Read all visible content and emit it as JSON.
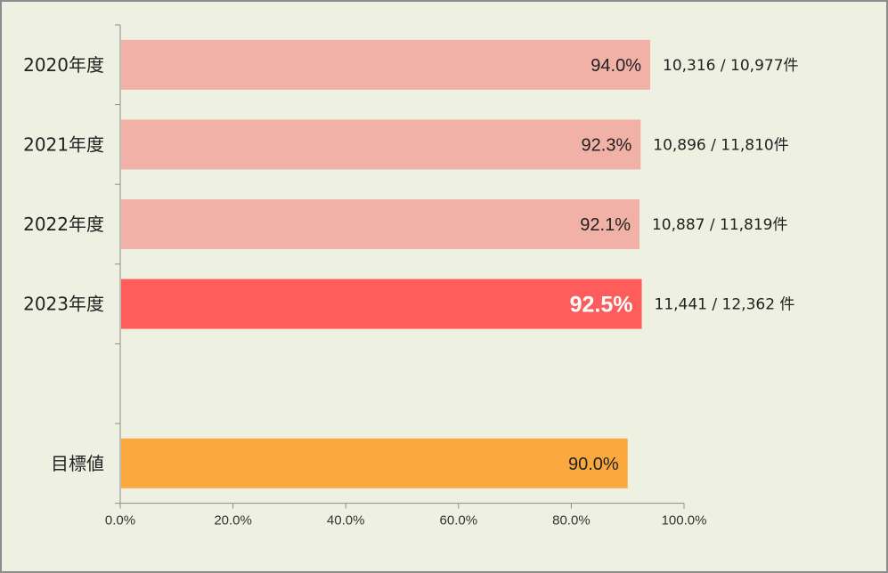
{
  "chart_data": {
    "type": "bar",
    "orientation": "horizontal",
    "title": "",
    "xlabel": "",
    "ylabel": "",
    "xlim": [
      0,
      100
    ],
    "x_ticks": [
      "0.0%",
      "20.0%",
      "40.0%",
      "60.0%",
      "80.0%",
      "100.0%"
    ],
    "grid": false,
    "legend": "none",
    "categories": [
      "2020年度",
      "2021年度",
      "2022年度",
      "2023年度",
      "",
      "目標値"
    ],
    "values": [
      94.0,
      92.3,
      92.1,
      92.5,
      null,
      90.0
    ],
    "value_labels": [
      "94.0%",
      "92.3%",
      "92.1%",
      "92.5%",
      "",
      "90.0%"
    ],
    "count_labels": [
      "10,316 / 10,977件",
      "10,896 / 11,810件",
      "10,887 / 11,819件",
      "11,441 / 12,362 件",
      "",
      ""
    ],
    "highlight_index": 3,
    "colors": {
      "default": "#f2b1a6",
      "highlight": "#ff5c5c",
      "target": "#fba83e",
      "background": "#eef0e2",
      "axis": "#8c8c8c"
    }
  }
}
